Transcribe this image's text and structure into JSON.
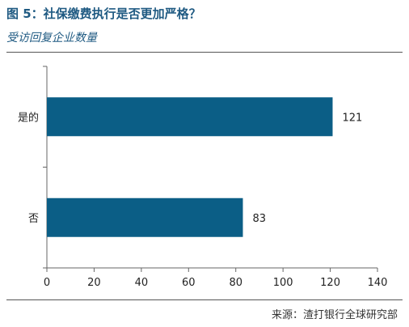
{
  "header": {
    "title": "图 5：社保缴费执行是否更加严格？",
    "subtitle": "受访回复企业数量"
  },
  "footer": {
    "source": "来源：渣打银行全球研究部"
  },
  "colors": {
    "bar": "#0b5e86",
    "title": "#1f5a82"
  },
  "chart_data": {
    "type": "bar",
    "orientation": "horizontal",
    "title": "",
    "xlabel": "",
    "ylabel": "",
    "categories": [
      "是的",
      "否"
    ],
    "values": [
      121,
      83
    ],
    "data_labels": [
      "121",
      "83"
    ],
    "xlim": [
      0,
      140
    ],
    "x_ticks": [
      0,
      20,
      40,
      60,
      80,
      100,
      120,
      140
    ],
    "grid": false,
    "legend": "none"
  }
}
